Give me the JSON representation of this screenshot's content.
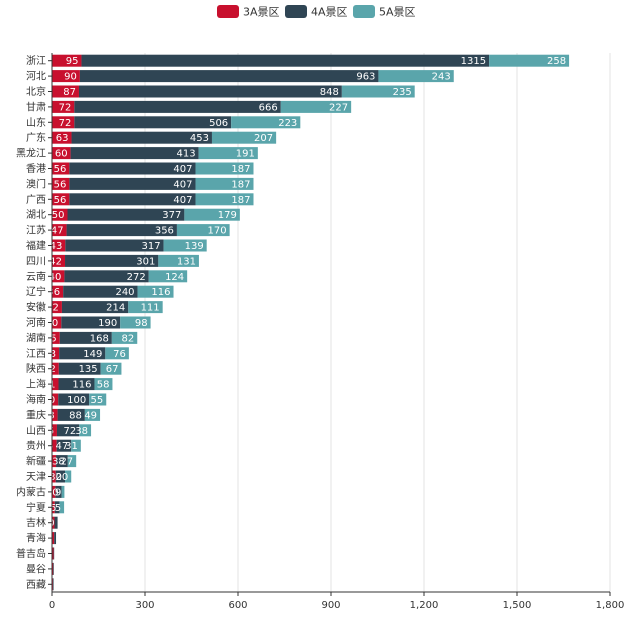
{
  "chart_data": {
    "type": "bar",
    "orientation": "horizontal",
    "stacked": true,
    "title": "",
    "legend_position": "top-center",
    "xlim": [
      0,
      1800
    ],
    "x_ticks": [
      0,
      300,
      600,
      900,
      1200,
      1500,
      1800
    ],
    "x_tick_labels": [
      "0",
      "300",
      "600",
      "900",
      "1,200",
      "1,500",
      "1,800"
    ],
    "grid": true,
    "categories": [
      "浙江",
      "河北",
      "北京",
      "甘肃",
      "山东",
      "广东",
      "黑龙江",
      "香港",
      "澳门",
      "广西",
      "湖北",
      "江苏",
      "福建",
      "四川",
      "云南",
      "辽宁",
      "安徽",
      "河南",
      "湖南",
      "江西",
      "陕西",
      "上海",
      "海南",
      "重庆",
      "山西",
      "贵州",
      "新疆",
      "天津",
      "内蒙古",
      "宁夏",
      "吉林",
      "青海",
      "普吉岛",
      "曼谷",
      "西藏"
    ],
    "series": [
      {
        "name": "3A景区",
        "color": "#c8102e",
        "values": [
          95,
          90,
          87,
          72,
          72,
          63,
          60,
          56,
          56,
          56,
          50,
          47,
          43,
          42,
          40,
          36,
          32,
          30,
          25,
          23,
          22,
          21,
          20,
          18,
          16,
          15,
          13,
          12,
          11,
          9,
          8,
          7,
          5,
          4,
          3
        ]
      },
      {
        "name": "4A景区",
        "color": "#2f4554",
        "values": [
          1315,
          963,
          848,
          666,
          506,
          453,
          413,
          407,
          407,
          407,
          377,
          356,
          317,
          301,
          272,
          240,
          214,
          190,
          168,
          149,
          135,
          116,
          100,
          88,
          72,
          47,
          38,
          30,
          20,
          15,
          10,
          6,
          2,
          2,
          2
        ]
      },
      {
        "name": "5A景区",
        "color": "#5aa5ab",
        "values": [
          258,
          243,
          235,
          227,
          223,
          207,
          191,
          187,
          187,
          187,
          179,
          170,
          139,
          131,
          124,
          116,
          111,
          98,
          82,
          76,
          67,
          58,
          55,
          49,
          38,
          31,
          27,
          20,
          9,
          15,
          0,
          0,
          0,
          0,
          0
        ]
      }
    ]
  }
}
